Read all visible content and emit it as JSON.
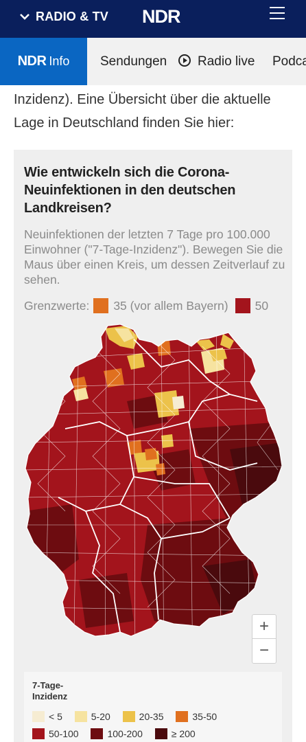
{
  "header": {
    "section_label": "RADIO & TV",
    "logo": "NDR",
    "menu_icon": "hamburger-icon",
    "chevron_icon": "chevron-down-icon"
  },
  "nav": {
    "brand_ndr": "NDR",
    "brand_info": "Info",
    "items": [
      {
        "label": "Sendungen"
      },
      {
        "label": "Radio live",
        "icon": "play-icon"
      },
      {
        "label": "Podcas"
      }
    ]
  },
  "intro": {
    "text": "Inzidenz). Eine Übersicht über die aktuelle Lage in Deutschland finden Sie hier:"
  },
  "map_card": {
    "title": "Wie entwickeln sich die Corona-Neuinfektionen in den deutschen Landkreisen?",
    "subtitle": "Neuinfektionen der letzten 7 Tage pro 100.000 Einwohner (\"7-Tage-Inzidenz\"). Bewegen Sie die Maus über einen Kreis, um dessen Zeitverlauf zu sehen.",
    "thresholds_label": "Grenzwerte:",
    "threshold_35": "35 (vor allem Bayern)",
    "threshold_50": "50",
    "threshold_35_color": "#e0701f",
    "threshold_50_color": "#a3141c",
    "zoom_in": "+",
    "zoom_out": "−"
  },
  "legend": {
    "title": "7-Tage-Inzidenz",
    "items": [
      {
        "label": "< 5",
        "color": "#f6ecd2"
      },
      {
        "label": "5-20",
        "color": "#f6e3a0"
      },
      {
        "label": "20-35",
        "color": "#ecc24a"
      },
      {
        "label": "35-50",
        "color": "#e0701f"
      },
      {
        "label": "50-100",
        "color": "#a3141c"
      },
      {
        "label": "100-200",
        "color": "#6d0c10"
      },
      {
        "label": "≥ 200",
        "color": "#4a0a0d"
      }
    ]
  }
}
